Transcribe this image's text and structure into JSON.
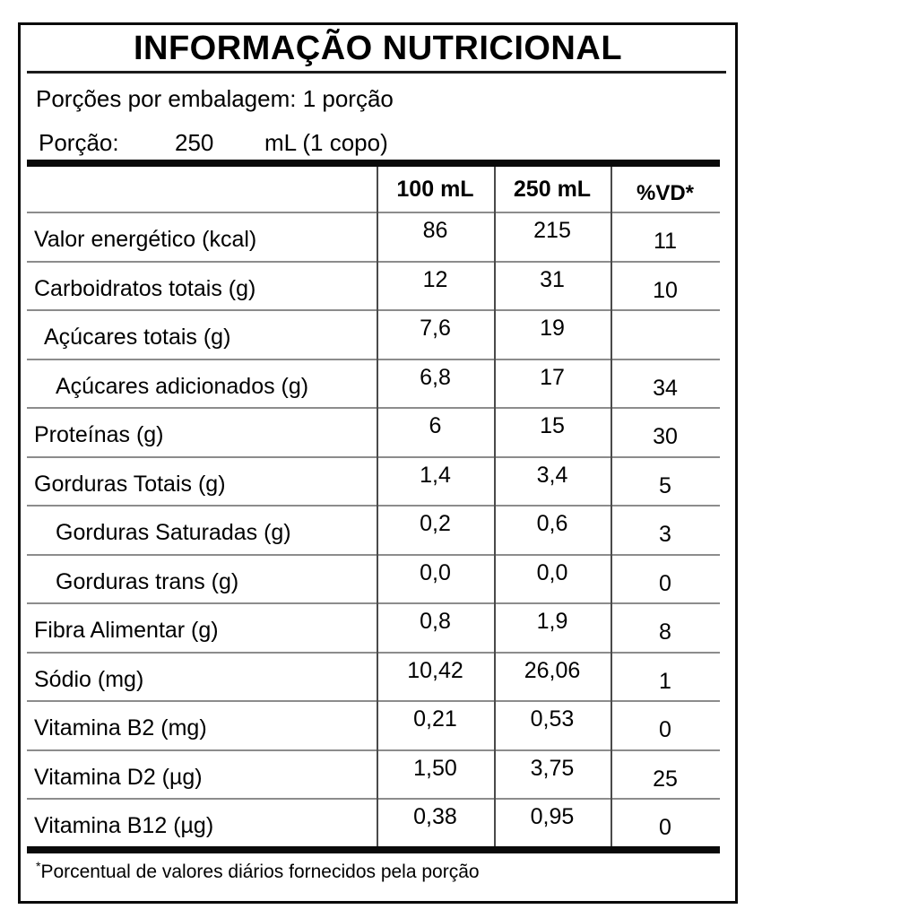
{
  "title": "INFORMAÇÃO NUTRICIONAL",
  "servings_line": "Porções por embalagem: 1 porção",
  "portion": {
    "label": "Porção:",
    "amount": "250",
    "unit": "mL (1 copo)"
  },
  "table": {
    "header": {
      "col_item": "",
      "col_100ml": "100 mL",
      "col_250ml": "250 mL",
      "col_vd": "%VD*"
    },
    "rows": [
      {
        "label": "Valor energético (kcal)",
        "indent": 0,
        "v100": "86",
        "v250": "215",
        "vd": "11"
      },
      {
        "label": "Carboidratos totais (g)",
        "indent": 0,
        "v100": "12",
        "v250": "31",
        "vd": "10"
      },
      {
        "label": "Açúcares totais (g)",
        "indent": 1,
        "v100": "7,6",
        "v250": "19",
        "vd": ""
      },
      {
        "label": "Açúcares adicionados (g)",
        "indent": 2,
        "v100": "6,8",
        "v250": "17",
        "vd": "34"
      },
      {
        "label": "Proteínas (g)",
        "indent": 0,
        "v100": "6",
        "v250": "15",
        "vd": "30"
      },
      {
        "label": "Gorduras Totais (g)",
        "indent": 0,
        "v100": "1,4",
        "v250": "3,4",
        "vd": "5"
      },
      {
        "label": "Gorduras Saturadas (g)",
        "indent": 2,
        "v100": "0,2",
        "v250": "0,6",
        "vd": "3"
      },
      {
        "label": "Gorduras trans (g)",
        "indent": 2,
        "v100": "0,0",
        "v250": "0,0",
        "vd": "0"
      },
      {
        "label": "Fibra Alimentar (g)",
        "indent": 0,
        "v100": "0,8",
        "v250": "1,9",
        "vd": "8"
      },
      {
        "label": "Sódio (mg)",
        "indent": 0,
        "v100": "10,42",
        "v250": "26,06",
        "vd": "1"
      },
      {
        "label": "Vitamina B2 (mg)",
        "indent": 0,
        "v100": "0,21",
        "v250": "0,53",
        "vd": "0"
      },
      {
        "label": "Vitamina D2 (µg)",
        "indent": 0,
        "v100": "1,50",
        "v250": "3,75",
        "vd": "25"
      },
      {
        "label": "Vitamina B12 (µg)",
        "indent": 0,
        "v100": "0,38",
        "v250": "0,95",
        "vd": "0"
      }
    ]
  },
  "footnote": {
    "marker": "*",
    "text": "Porcentual de valores diários fornecidos pela porção"
  },
  "colors": {
    "background": "#ffffff",
    "text": "#000000",
    "outer_border": "#0a0a0a",
    "thick_bar": "#0a0a0a",
    "row_line": "#8c8c8c",
    "column_line": "#4a4a4a"
  }
}
